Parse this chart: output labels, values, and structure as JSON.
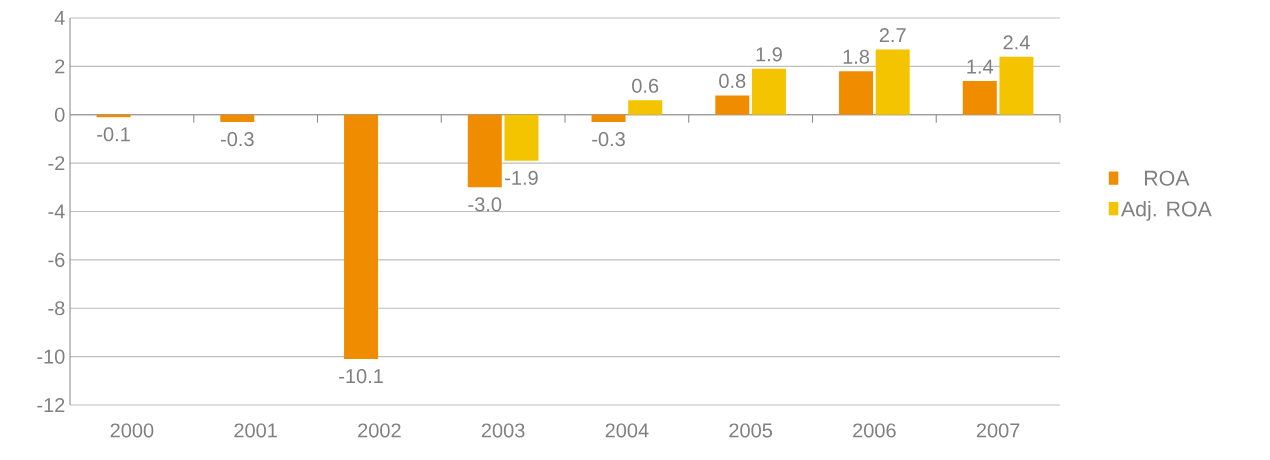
{
  "chart_data": {
    "type": "bar",
    "categories": [
      "2000",
      "2001",
      "2002",
      "2003",
      "2004",
      "2005",
      "2006",
      "2007"
    ],
    "series": [
      {
        "name": "ROA",
        "color": "#f08c00",
        "values": [
          -0.1,
          -0.3,
          -10.1,
          -3.0,
          -0.3,
          0.8,
          1.8,
          1.4
        ],
        "value_labels": [
          "-0.1",
          "-0.3",
          "-10.1",
          "-3.0",
          "-0.3",
          "0.8",
          "1.8",
          "1.4"
        ]
      },
      {
        "name": "Adj. ROA",
        "color": "#f5c400",
        "values": [
          null,
          null,
          null,
          -1.9,
          0.6,
          1.9,
          2.7,
          2.4
        ],
        "value_labels": [
          null,
          null,
          null,
          "-1.9",
          "0.6",
          "1.9",
          "2.7",
          "2.4"
        ]
      }
    ],
    "ylim": [
      -12,
      4
    ],
    "yticks": [
      -12,
      -10,
      -8,
      -6,
      -4,
      -2,
      0,
      2,
      4
    ],
    "grid": "y",
    "legend": "right"
  }
}
